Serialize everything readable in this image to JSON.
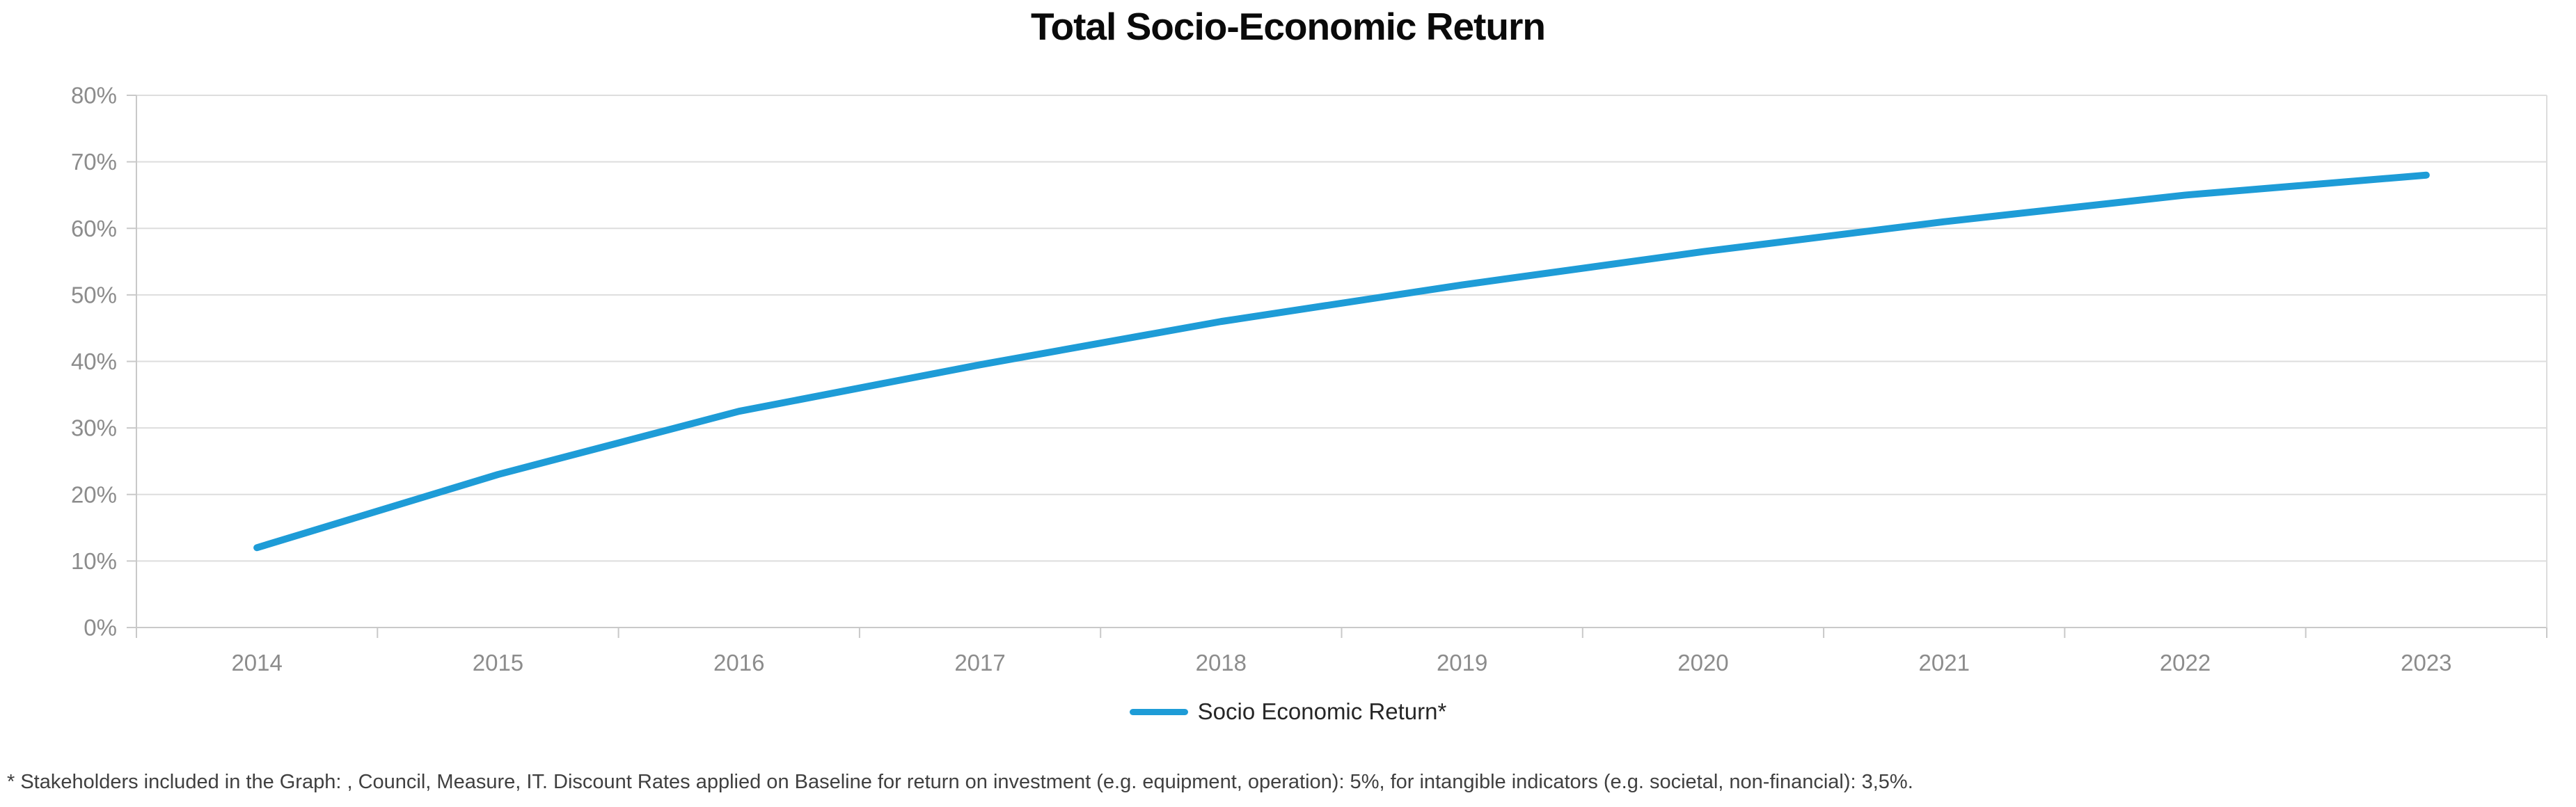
{
  "header": {
    "title": "Total Socio-Economic Return"
  },
  "legend": {
    "label": "Socio Economic Return*"
  },
  "footnote": {
    "text": "* Stakeholders included in the Graph: , Council, Measure, IT. Discount Rates applied on Baseline for return on investment (e.g. equipment, operation): 5%, for intangible indicators (e.g. societal, non-financial): 3,5%."
  },
  "chart_data": {
    "type": "line",
    "title": "Total Socio-Economic Return",
    "categories": [
      "2014",
      "2015",
      "2016",
      "2017",
      "2018",
      "2019",
      "2020",
      "2021",
      "2022",
      "2023"
    ],
    "series": [
      {
        "name": "Socio Economic Return*",
        "values": [
          12,
          23,
          32.5,
          39.5,
          46,
          51.5,
          56.5,
          61,
          65,
          68
        ]
      }
    ],
    "xlabel": "",
    "ylabel": "",
    "ylim": [
      0,
      80
    ],
    "ytick_step": 10,
    "ytick_suffix": "%",
    "y_tick_labels": [
      "0%",
      "10%",
      "20%",
      "30%",
      "40%",
      "50%",
      "60%",
      "70%",
      "80%"
    ],
    "grid": "horizontal",
    "legend_position": "bottom-center",
    "line_color": "#1E9CD7",
    "grid_color": "#DDDDDD",
    "axis_line_color": "#C9C9C9",
    "axis_label_color": "#8C8C8C",
    "title_color": "#0A0A0A",
    "legend_text_color": "#262626",
    "footnote_color": "#404040"
  }
}
